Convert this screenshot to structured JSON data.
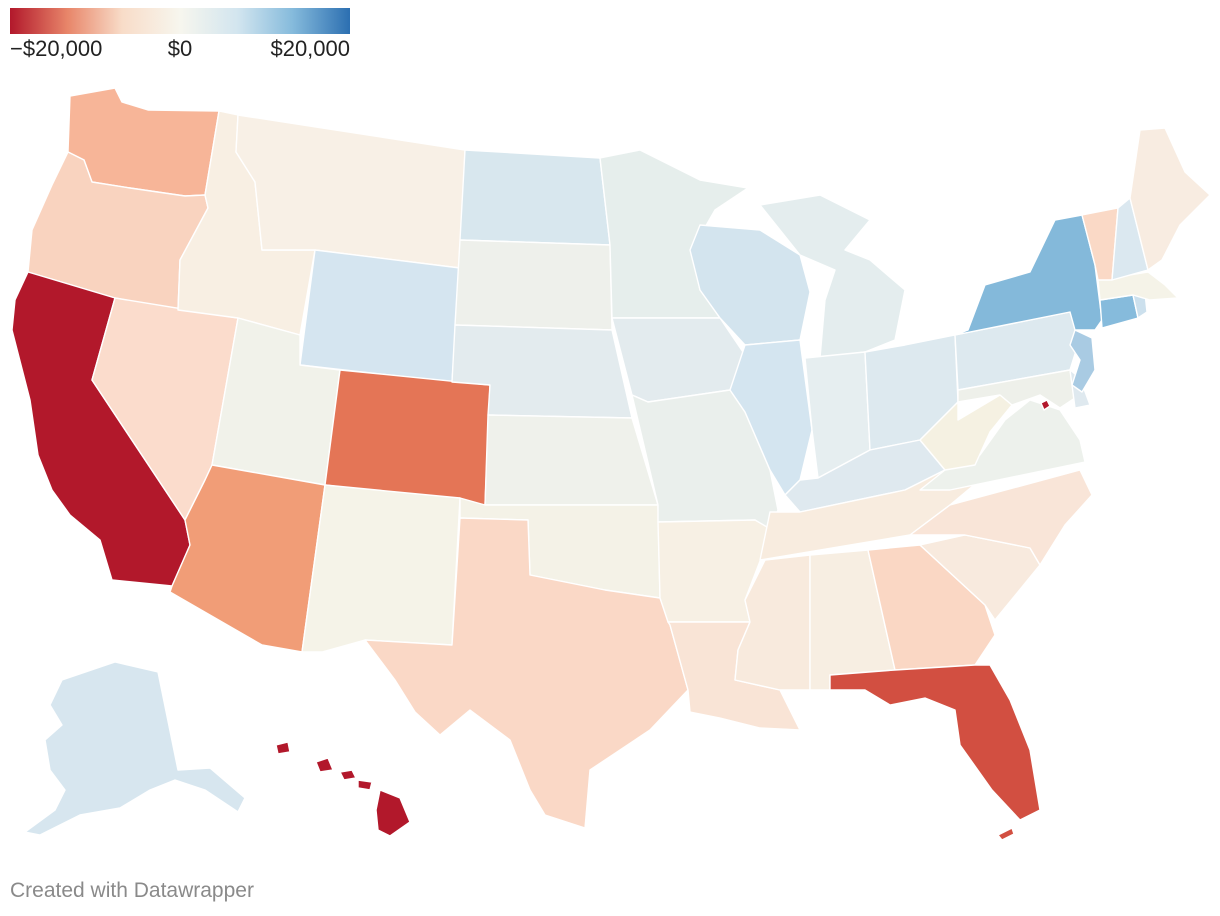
{
  "legend": {
    "min_label": "−$20,000",
    "mid_label": "$0",
    "max_label": "$20,000",
    "colors": [
      "#b2182b",
      "#e8866a",
      "#f8dcc8",
      "#f7f6ee",
      "#d2e5ef",
      "#86bbdc",
      "#2c6fb1"
    ]
  },
  "footer": {
    "credit": "Created with Datawrapper"
  },
  "map_data": {
    "type": "choropleth",
    "region": "United States",
    "unit": "$",
    "scale_min": -20000,
    "scale_max": 20000,
    "state_colors": {
      "WA": "#f7b598",
      "OR": "#f9d3bf",
      "CA": "#b2182b",
      "NV": "#fbdccc",
      "ID": "#f8efe3",
      "MT": "#f8f0e6",
      "WY": "#d5e5f0",
      "UT": "#f1f2ea",
      "AZ": "#f19d77",
      "CO": "#e47556",
      "NM": "#f5f3e8",
      "ND": "#d8e7ee",
      "SD": "#eef0eb",
      "NE": "#e3ebee",
      "KS": "#eff1eb",
      "OK": "#f4f2e7",
      "TX": "#fad8c6",
      "MN": "#e6eeec",
      "IA": "#e3ebee",
      "MO": "#eaefec",
      "AR": "#f7f0e4",
      "LA": "#f9e4d6",
      "WI": "#d3e4ee",
      "IL": "#d4e5f0",
      "MI": "#e4edee",
      "IN": "#e6eef0",
      "OH": "#dde9ef",
      "KY": "#dfe9ef",
      "TN": "#f8ecdf",
      "MS": "#f8eadd",
      "AL": "#f7eee2",
      "GA": "#fad7c4",
      "FL": "#d24f41",
      "SC": "#f8eade",
      "NC": "#f9e5d8",
      "VA": "#edf1ec",
      "WV": "#f5f1e2",
      "PA": "#dde9ef",
      "NY": "#84b9da",
      "NJ": "#a9cbe3",
      "DE": "#dfe9ef",
      "MD": "#eef0ea",
      "DC": "#b2182b",
      "CT": "#86bbdc",
      "RI": "#cce0ed",
      "MA": "#f5f3e8",
      "VT": "#fad9c6",
      "NH": "#dbe8f0",
      "ME": "#f8ece1",
      "AK": "#d7e6ef",
      "HI": "#b2182b"
    }
  }
}
